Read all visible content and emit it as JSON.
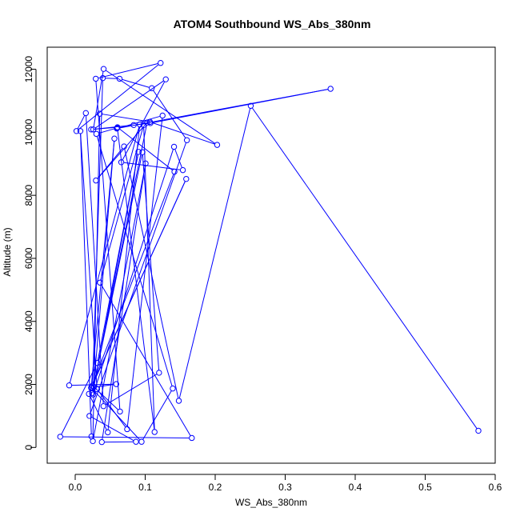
{
  "chart_data": {
    "type": "line",
    "title": "ATOM4 Southbound WS_Abs_380nm",
    "xlabel": "WS_Abs_380nm",
    "ylabel": "Altitude (m)",
    "xlim": [
      -0.04,
      0.6
    ],
    "ylim": [
      -500,
      12700
    ],
    "x_ticks": [
      0.0,
      0.1,
      0.2,
      0.3,
      0.4,
      0.5,
      0.6
    ],
    "x_tick_labels": [
      "0.0",
      "0.1",
      "0.2",
      "0.3",
      "0.4",
      "0.5",
      "0.6"
    ],
    "y_ticks": [
      0,
      2000,
      4000,
      6000,
      8000,
      10000,
      12000
    ],
    "y_tick_labels": [
      "0",
      "2000",
      "4000",
      "6000",
      "8000",
      "10000",
      "12000"
    ],
    "grid": false,
    "series_color": "#0000ff",
    "series": [
      {
        "x": [
          0.576,
          0.2508,
          0.148,
          0.0698,
          0.0296,
          0.1028,
          0.0242,
          0.096,
          0.1198,
          0.0404,
          0.0152,
          0.0018,
          0.122,
          0.0294,
          0.064,
          0.0248,
          0.0394,
          0.0634,
          0.1094,
          0.1596,
          0.0204,
          0.0868,
          0.038,
          0.1006,
          0.0252,
          0.035,
          0.1068,
          0.2028,
          0.0406,
          0.0258,
          0.1294,
          0.0658,
          0.1538,
          0.1412,
          0.0256,
          0.056,
          0.0228,
          0.1586,
          0.0228,
          0.0948,
          0.1394,
          0.0302,
          0.0602,
          0.1134,
          0.0978,
          0.0354,
          0.1666,
          -0.0214,
          0.0316,
          0.0904,
          0.0266,
          0.0586,
          -0.0086,
          0.0922,
          0.0466,
          0.0196,
          0.1418,
          0.0604,
          0.0228,
          0.0836,
          0.1074,
          0.3648,
          0.0594,
          0.1248,
          0.0742,
          0.0312,
          0.0074,
          0.0232
        ],
        "y": [
          530,
          10840,
          1480,
          9550,
          8470,
          10310,
          1720,
          9370,
          2370,
          1310,
          10610,
          10040,
          12200,
          11700,
          1140,
          1960,
          11720,
          11700,
          11400,
          9750,
          1000,
          180,
          170,
          9010,
          200,
          10590,
          10330,
          9600,
          12010,
          10090,
          11680,
          9050,
          8800,
          9540,
          1680,
          9800,
          1890,
          8520,
          1900,
          180,
          1870,
          9950,
          10140,
          490,
          10230,
          5230,
          300,
          340,
          2680,
          9380,
          1910,
          2010,
          1970,
          10250,
          480,
          1700,
          8750,
          10160,
          10090,
          10230,
          10290,
          11380,
          10120,
          10530,
          580,
          1850,
          10040,
          350
        ]
      }
    ]
  }
}
